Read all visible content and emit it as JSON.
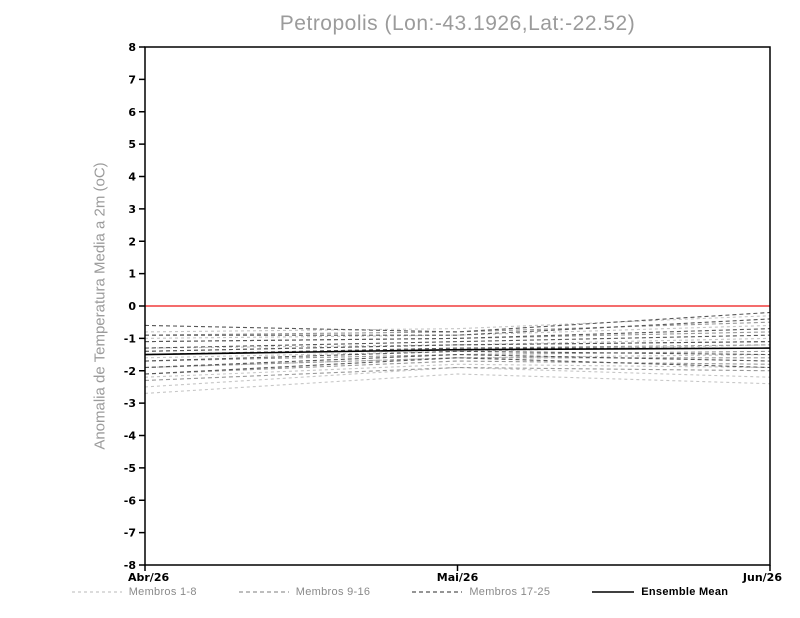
{
  "chart_data": {
    "type": "line",
    "title": "Petropolis (Lon:-43.1926,Lat:-22.52)",
    "ylabel": "Anomalia de Temperatura Media a 2m (oC)",
    "xlabel": "",
    "x_ticks": [
      "Abr/26",
      "Mai/26",
      "Jun/26"
    ],
    "ylim": [
      -8,
      8
    ],
    "y_ticks": [
      8,
      7,
      6,
      5,
      4,
      3,
      2,
      1,
      0,
      -1,
      -2,
      -3,
      -4,
      -5,
      -6,
      -7,
      -8
    ],
    "grid": false,
    "legend_position": "bottom",
    "zero_line": {
      "value": 0,
      "color": "#f03b3b"
    },
    "frame_color": "#000000",
    "series_groups": [
      {
        "name": "Membros 1-8",
        "color": "#c6c6c6",
        "dash": "3 3",
        "members": [
          [
            -0.8,
            -0.7,
            -0.3
          ],
          [
            -1.0,
            -0.9,
            -0.6
          ],
          [
            -1.3,
            -1.2,
            -1.0
          ],
          [
            -1.6,
            -1.4,
            -1.2
          ],
          [
            -1.9,
            -1.6,
            -1.5
          ],
          [
            -2.2,
            -1.8,
            -1.9
          ],
          [
            -2.5,
            -1.9,
            -2.2
          ],
          [
            -2.7,
            -2.1,
            -2.4
          ]
        ]
      },
      {
        "name": "Membros 9-16",
        "color": "#989898",
        "dash": "4 3",
        "members": [
          [
            -0.9,
            -0.8,
            -0.5
          ],
          [
            -1.1,
            -1.0,
            -0.8
          ],
          [
            -1.4,
            -1.2,
            -1.1
          ],
          [
            -1.5,
            -1.3,
            -1.2
          ],
          [
            -1.7,
            -1.5,
            -1.4
          ],
          [
            -1.9,
            -1.6,
            -1.6
          ],
          [
            -2.1,
            -1.7,
            -1.8
          ],
          [
            -2.3,
            -1.9,
            -2.0
          ]
        ]
      },
      {
        "name": "Membros 17-25",
        "color": "#565656",
        "dash": "4 3",
        "members": [
          [
            -0.6,
            -0.8,
            -0.2
          ],
          [
            -0.9,
            -0.9,
            -0.4
          ],
          [
            -1.1,
            -1.0,
            -0.7
          ],
          [
            -1.3,
            -1.1,
            -0.9
          ],
          [
            -1.4,
            -1.2,
            -1.1
          ],
          [
            -1.5,
            -1.3,
            -1.3
          ],
          [
            -1.7,
            -1.4,
            -1.5
          ],
          [
            -1.9,
            -1.5,
            -1.7
          ],
          [
            -2.1,
            -1.6,
            -1.9
          ]
        ]
      }
    ],
    "ensemble_mean": {
      "name": "Ensemble Mean",
      "color": "#000000",
      "values": [
        -1.5,
        -1.35,
        -1.3
      ]
    }
  }
}
